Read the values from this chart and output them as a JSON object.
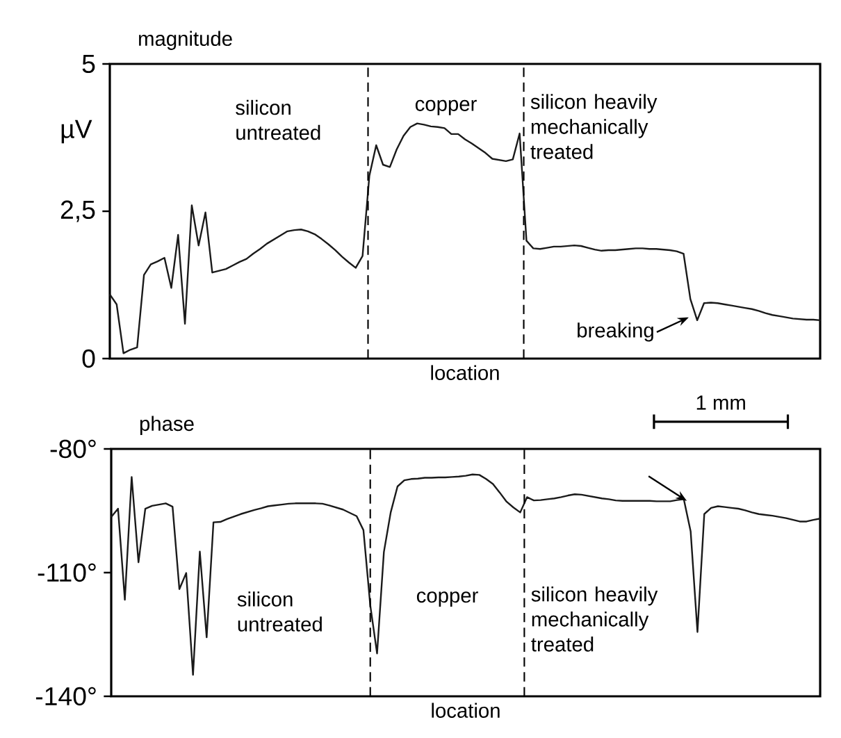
{
  "chart_data": [
    {
      "type": "line",
      "title": "magnitude",
      "ylabel": "µV",
      "xlabel": "location",
      "color": "#1a1a1a",
      "marker": "none",
      "tick_labels": "y",
      "categories": [
        null,
        null,
        null,
        null,
        null,
        null,
        null,
        null,
        null,
        null,
        null,
        null,
        null,
        null,
        null,
        null,
        null,
        null,
        null,
        null,
        null,
        null,
        null,
        null,
        null,
        null,
        null,
        null,
        null,
        null,
        null,
        null,
        null,
        null,
        null,
        null,
        null,
        null,
        null,
        null,
        null,
        null,
        null,
        null,
        null,
        null,
        null,
        null,
        null,
        null,
        null,
        null,
        null,
        null,
        null,
        null,
        null,
        null,
        null,
        null,
        null,
        null,
        null,
        null,
        null,
        null,
        null,
        null,
        null,
        null,
        null,
        null,
        null,
        null,
        null,
        null,
        null,
        null,
        null,
        null,
        null,
        null,
        null,
        null,
        null,
        null,
        null,
        null,
        null,
        null,
        null,
        null,
        null,
        null,
        null,
        null,
        null,
        null,
        null,
        null,
        null,
        null,
        null,
        null,
        null
      ],
      "values": [
        1.09,
        0.92,
        0.09,
        0.15,
        0.19,
        1.42,
        1.6,
        1.65,
        1.71,
        1.2,
        2.1,
        0.59,
        2.6,
        1.92,
        2.48,
        1.46,
        1.49,
        1.52,
        1.58,
        1.64,
        1.69,
        1.78,
        1.86,
        1.95,
        2.02,
        2.09,
        2.16,
        2.18,
        2.19,
        2.16,
        2.11,
        2.03,
        1.94,
        1.84,
        1.73,
        1.63,
        1.54,
        1.74,
        3.1,
        3.62,
        3.29,
        3.25,
        3.55,
        3.78,
        3.93,
        3.99,
        3.97,
        3.94,
        3.93,
        3.91,
        3.81,
        3.81,
        3.72,
        3.65,
        3.57,
        3.49,
        3.39,
        3.37,
        3.35,
        3.38,
        3.82,
        2.0,
        1.87,
        1.86,
        1.88,
        1.9,
        1.9,
        1.91,
        1.92,
        1.91,
        1.88,
        1.85,
        1.83,
        1.84,
        1.84,
        1.85,
        1.86,
        1.87,
        1.87,
        1.86,
        1.86,
        1.85,
        1.84,
        1.82,
        1.78,
        1.01,
        0.65,
        0.94,
        0.95,
        0.94,
        0.92,
        0.9,
        0.88,
        0.86,
        0.84,
        0.81,
        0.77,
        0.74,
        0.72,
        0.7,
        0.68,
        0.67,
        0.66,
        0.66,
        0.65
      ],
      "ylim": [
        0,
        5
      ],
      "yticks": [
        {
          "value": 0,
          "label": "0"
        },
        {
          "value": 2.5,
          "label": "2,5"
        },
        {
          "value": 5,
          "label": "5"
        }
      ],
      "annotations": [
        "silicon untreated",
        "copper",
        "silicon heavily mechanically treated",
        "breaking"
      ]
    },
    {
      "type": "line",
      "title": "phase",
      "xlabel": "location",
      "color": "#1a1a1a",
      "marker": "none",
      "tick_labels": "y",
      "categories": [
        null,
        null,
        null,
        null,
        null,
        null,
        null,
        null,
        null,
        null,
        null,
        null,
        null,
        null,
        null,
        null,
        null,
        null,
        null,
        null,
        null,
        null,
        null,
        null,
        null,
        null,
        null,
        null,
        null,
        null,
        null,
        null,
        null,
        null,
        null,
        null,
        null,
        null,
        null,
        null,
        null,
        null,
        null,
        null,
        null,
        null,
        null,
        null,
        null,
        null,
        null,
        null,
        null,
        null,
        null,
        null,
        null,
        null,
        null,
        null,
        null,
        null,
        null,
        null,
        null,
        null,
        null,
        null,
        null,
        null,
        null,
        null,
        null,
        null,
        null,
        null,
        null,
        null,
        null,
        null,
        null,
        null,
        null,
        null,
        null,
        null,
        null,
        null,
        null,
        null,
        null,
        null,
        null,
        null,
        null,
        null,
        null,
        null,
        null,
        null,
        null,
        null,
        null,
        null,
        null
      ],
      "values": [
        -96.5,
        -94.5,
        -116.6,
        -86.8,
        -107.5,
        -94.5,
        -93.8,
        -93.5,
        -93.2,
        -94.0,
        -114.0,
        -110.1,
        -134.8,
        -104.9,
        -125.7,
        -97.8,
        -97.7,
        -97.0,
        -96.4,
        -95.8,
        -95.3,
        -94.8,
        -94.4,
        -93.9,
        -93.7,
        -93.5,
        -93.3,
        -93.2,
        -93.2,
        -93.2,
        -93.2,
        -93.3,
        -93.7,
        -94.2,
        -94.7,
        -95.5,
        -96.3,
        -99.7,
        -117.9,
        -129.6,
        -105.0,
        -95.4,
        -89.1,
        -87.6,
        -87.3,
        -87.2,
        -87.0,
        -87.0,
        -86.9,
        -86.9,
        -86.8,
        -86.7,
        -86.5,
        -86.2,
        -86.3,
        -87.3,
        -88.5,
        -90.6,
        -92.8,
        -94.2,
        -95.4,
        -91.7,
        -92.5,
        -92.4,
        -92.2,
        -92.0,
        -91.7,
        -91.3,
        -91.0,
        -91.1,
        -91.4,
        -91.7,
        -92.0,
        -92.2,
        -92.5,
        -92.6,
        -92.6,
        -92.6,
        -92.6,
        -92.6,
        -92.7,
        -92.7,
        -92.7,
        -92.4,
        -92.2,
        -100.0,
        -124.4,
        -95.8,
        -94.3,
        -93.9,
        -94.1,
        -94.3,
        -94.5,
        -94.9,
        -95.4,
        -95.8,
        -96.0,
        -96.2,
        -96.5,
        -96.8,
        -97.2,
        -97.6,
        -97.6,
        -97.2,
        -96.9
      ],
      "ylim": [
        -140,
        -80
      ],
      "yticks": [
        {
          "value": -140,
          "label": "-140°"
        },
        {
          "value": -110,
          "label": "-110°"
        },
        {
          "value": -80,
          "label": "-80°"
        }
      ],
      "annotations": [
        "silicon untreated",
        "copper",
        "silicon heavily mechanically treated",
        "1 mm"
      ]
    }
  ]
}
